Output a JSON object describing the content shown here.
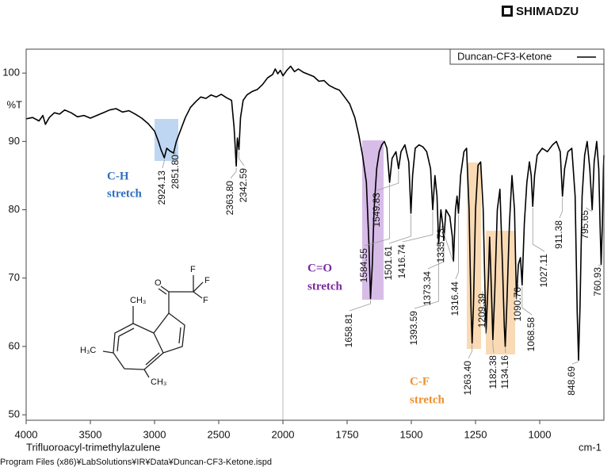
{
  "brand": "SHIMADZU",
  "file_path": "Program Files (x86)¥LabSolutions¥IR¥Data¥Duncan-CF3-Ketone.ispd",
  "molecule_labels": [
    "O",
    "F",
    "F",
    "F",
    "CH₃",
    "H₃C",
    "CH₃"
  ],
  "chart_data": {
    "type": "line",
    "subtitle": "Trifluoroacyl-trimethylazulene",
    "x_label": "cm-1",
    "y_label": "%T",
    "xlim": [
      4000,
      750
    ],
    "ylim": [
      49.2,
      103.5
    ],
    "xticks": [
      4000,
      3500,
      3000,
      2500,
      2000,
      1750,
      1500,
      1250,
      1000
    ],
    "yticks": [
      50,
      60,
      70,
      80,
      90,
      100
    ],
    "legend": "top-right",
    "x": [
      4000,
      3950,
      3900,
      3870,
      3850,
      3820,
      3780,
      3740,
      3700,
      3650,
      3600,
      3550,
      3500,
      3450,
      3400,
      3350,
      3300,
      3250,
      3200,
      3150,
      3100,
      3050,
      3000,
      2970,
      2950,
      2924.13,
      2905,
      2880,
      2851.8,
      2830,
      2800,
      2760,
      2720,
      2680,
      2640,
      2600,
      2560,
      2520,
      2480,
      2440,
      2400,
      2380,
      2363.8,
      2355,
      2342.59,
      2330,
      2310,
      2280,
      2240,
      2200,
      2160,
      2120,
      2080,
      2060,
      2040,
      2020,
      2000,
      1985,
      1970,
      1955,
      1940,
      1920,
      1900,
      1880,
      1860,
      1840,
      1820,
      1800,
      1780,
      1760,
      1740,
      1720,
      1705,
      1690,
      1675,
      1665,
      1658.81,
      1652,
      1645,
      1635,
      1625,
      1615,
      1605,
      1595,
      1584.55,
      1575,
      1560,
      1549.83,
      1540,
      1525,
      1510,
      1501.61,
      1495,
      1485,
      1470,
      1455,
      1440,
      1425,
      1416.74,
      1408,
      1400,
      1393.59,
      1385,
      1378,
      1373.34,
      1365,
      1350,
      1340,
      1335.73,
      1328,
      1322,
      1316.44,
      1308,
      1295,
      1285,
      1275,
      1268,
      1263.4,
      1258,
      1250,
      1240,
      1230,
      1220,
      1213,
      1209.39,
      1200,
      1195,
      1188,
      1182.38,
      1175,
      1165,
      1155,
      1145,
      1138,
      1134.16,
      1128,
      1118,
      1108,
      1098,
      1090.76,
      1083,
      1075,
      1068.58,
      1060,
      1050,
      1040,
      1033,
      1027.11,
      1020,
      1010,
      990,
      970,
      950,
      935,
      920,
      911.38,
      903,
      890,
      875,
      862,
      854,
      848.69,
      843,
      835,
      825,
      815,
      805,
      795.65,
      788,
      778,
      770,
      765,
      760.93,
      756,
      752,
      750
    ],
    "series": [
      {
        "name": "Duncan-CF3-Ketone",
        "color": "#000000",
        "values": [
          93.3,
          93.5,
          93.0,
          93.8,
          92.5,
          93.5,
          94.2,
          94.0,
          94.6,
          94.2,
          93.6,
          93.8,
          93.4,
          93.8,
          94.2,
          94.6,
          94.8,
          94.3,
          94.5,
          94.0,
          93.4,
          92.6,
          91.5,
          90.0,
          88.8,
          87.6,
          89.0,
          88.6,
          88.3,
          90.0,
          91.5,
          93.5,
          95.0,
          95.8,
          96.5,
          96.3,
          96.8,
          96.5,
          96.9,
          96.4,
          96.0,
          92.0,
          86.4,
          90.5,
          88.8,
          93.5,
          96.0,
          96.8,
          97.3,
          97.6,
          98.3,
          99.3,
          99.8,
          100.6,
          99.9,
          100.4,
          99.6,
          100.4,
          101.0,
          100.2,
          100.6,
          100.1,
          99.8,
          99.5,
          98.8,
          98.9,
          98.2,
          97.8,
          97.5,
          96.5,
          95.5,
          93.5,
          91.0,
          88.0,
          84.0,
          75.0,
          67.0,
          72.0,
          80.0,
          86.0,
          88.5,
          89.5,
          90.0,
          89.0,
          84.0,
          87.5,
          88.5,
          86.0,
          88.5,
          89.5,
          87.0,
          79.5,
          85.0,
          89.0,
          89.5,
          89.2,
          88.5,
          86.0,
          80.0,
          85.0,
          82.0,
          75.0,
          80.0,
          78.0,
          75.5,
          80.0,
          79.0,
          76.0,
          72.5,
          80.0,
          82.0,
          79.5,
          85.0,
          88.5,
          89.0,
          80.0,
          66.0,
          60.5,
          66.0,
          80.0,
          86.5,
          87.0,
          80.0,
          68.0,
          62.0,
          70.0,
          76.0,
          68.0,
          61.0,
          68.0,
          80.0,
          83.0,
          72.0,
          63.0,
          60.0,
          66.0,
          78.0,
          85.0,
          80.0,
          67.0,
          72.0,
          73.0,
          69.0,
          78.0,
          84.0,
          87.0,
          85.0,
          80.5,
          85.0,
          88.0,
          89.0,
          88.5,
          89.5,
          90.0,
          88.5,
          82.0,
          86.0,
          88.5,
          89.0,
          82.0,
          65.0,
          58.0,
          66.0,
          82.0,
          88.0,
          90.0,
          86.0,
          80.0,
          87.0,
          90.0,
          86.0,
          78.0,
          72.0,
          78.0,
          86.0,
          88.0
        ]
      }
    ],
    "peaks": [
      2924.13,
      {
        "value": 2851.8,
        "label": "2851.80"
      },
      {
        "value": 2363.8,
        "label": "2363.80"
      },
      2342.59,
      1658.81,
      1584.55,
      1549.83,
      1501.61,
      1416.74,
      1393.59,
      1373.34,
      1335.73,
      1316.44,
      {
        "value": 1263.4,
        "label": "1263.40"
      },
      1209.39,
      1182.38,
      1134.16,
      1090.76,
      1068.58,
      1027.11,
      911.38,
      848.69,
      795.65,
      760.93
    ],
    "groups": [
      {
        "lines": [
          "C-H",
          "stretch"
        ],
        "color": "#2f6fc0"
      },
      {
        "lines": [
          "C=O",
          "stretch"
        ],
        "color": "#7a2a9e"
      },
      {
        "lines": [
          "C-F",
          "stretch"
        ],
        "color": "#f0902a"
      }
    ]
  }
}
